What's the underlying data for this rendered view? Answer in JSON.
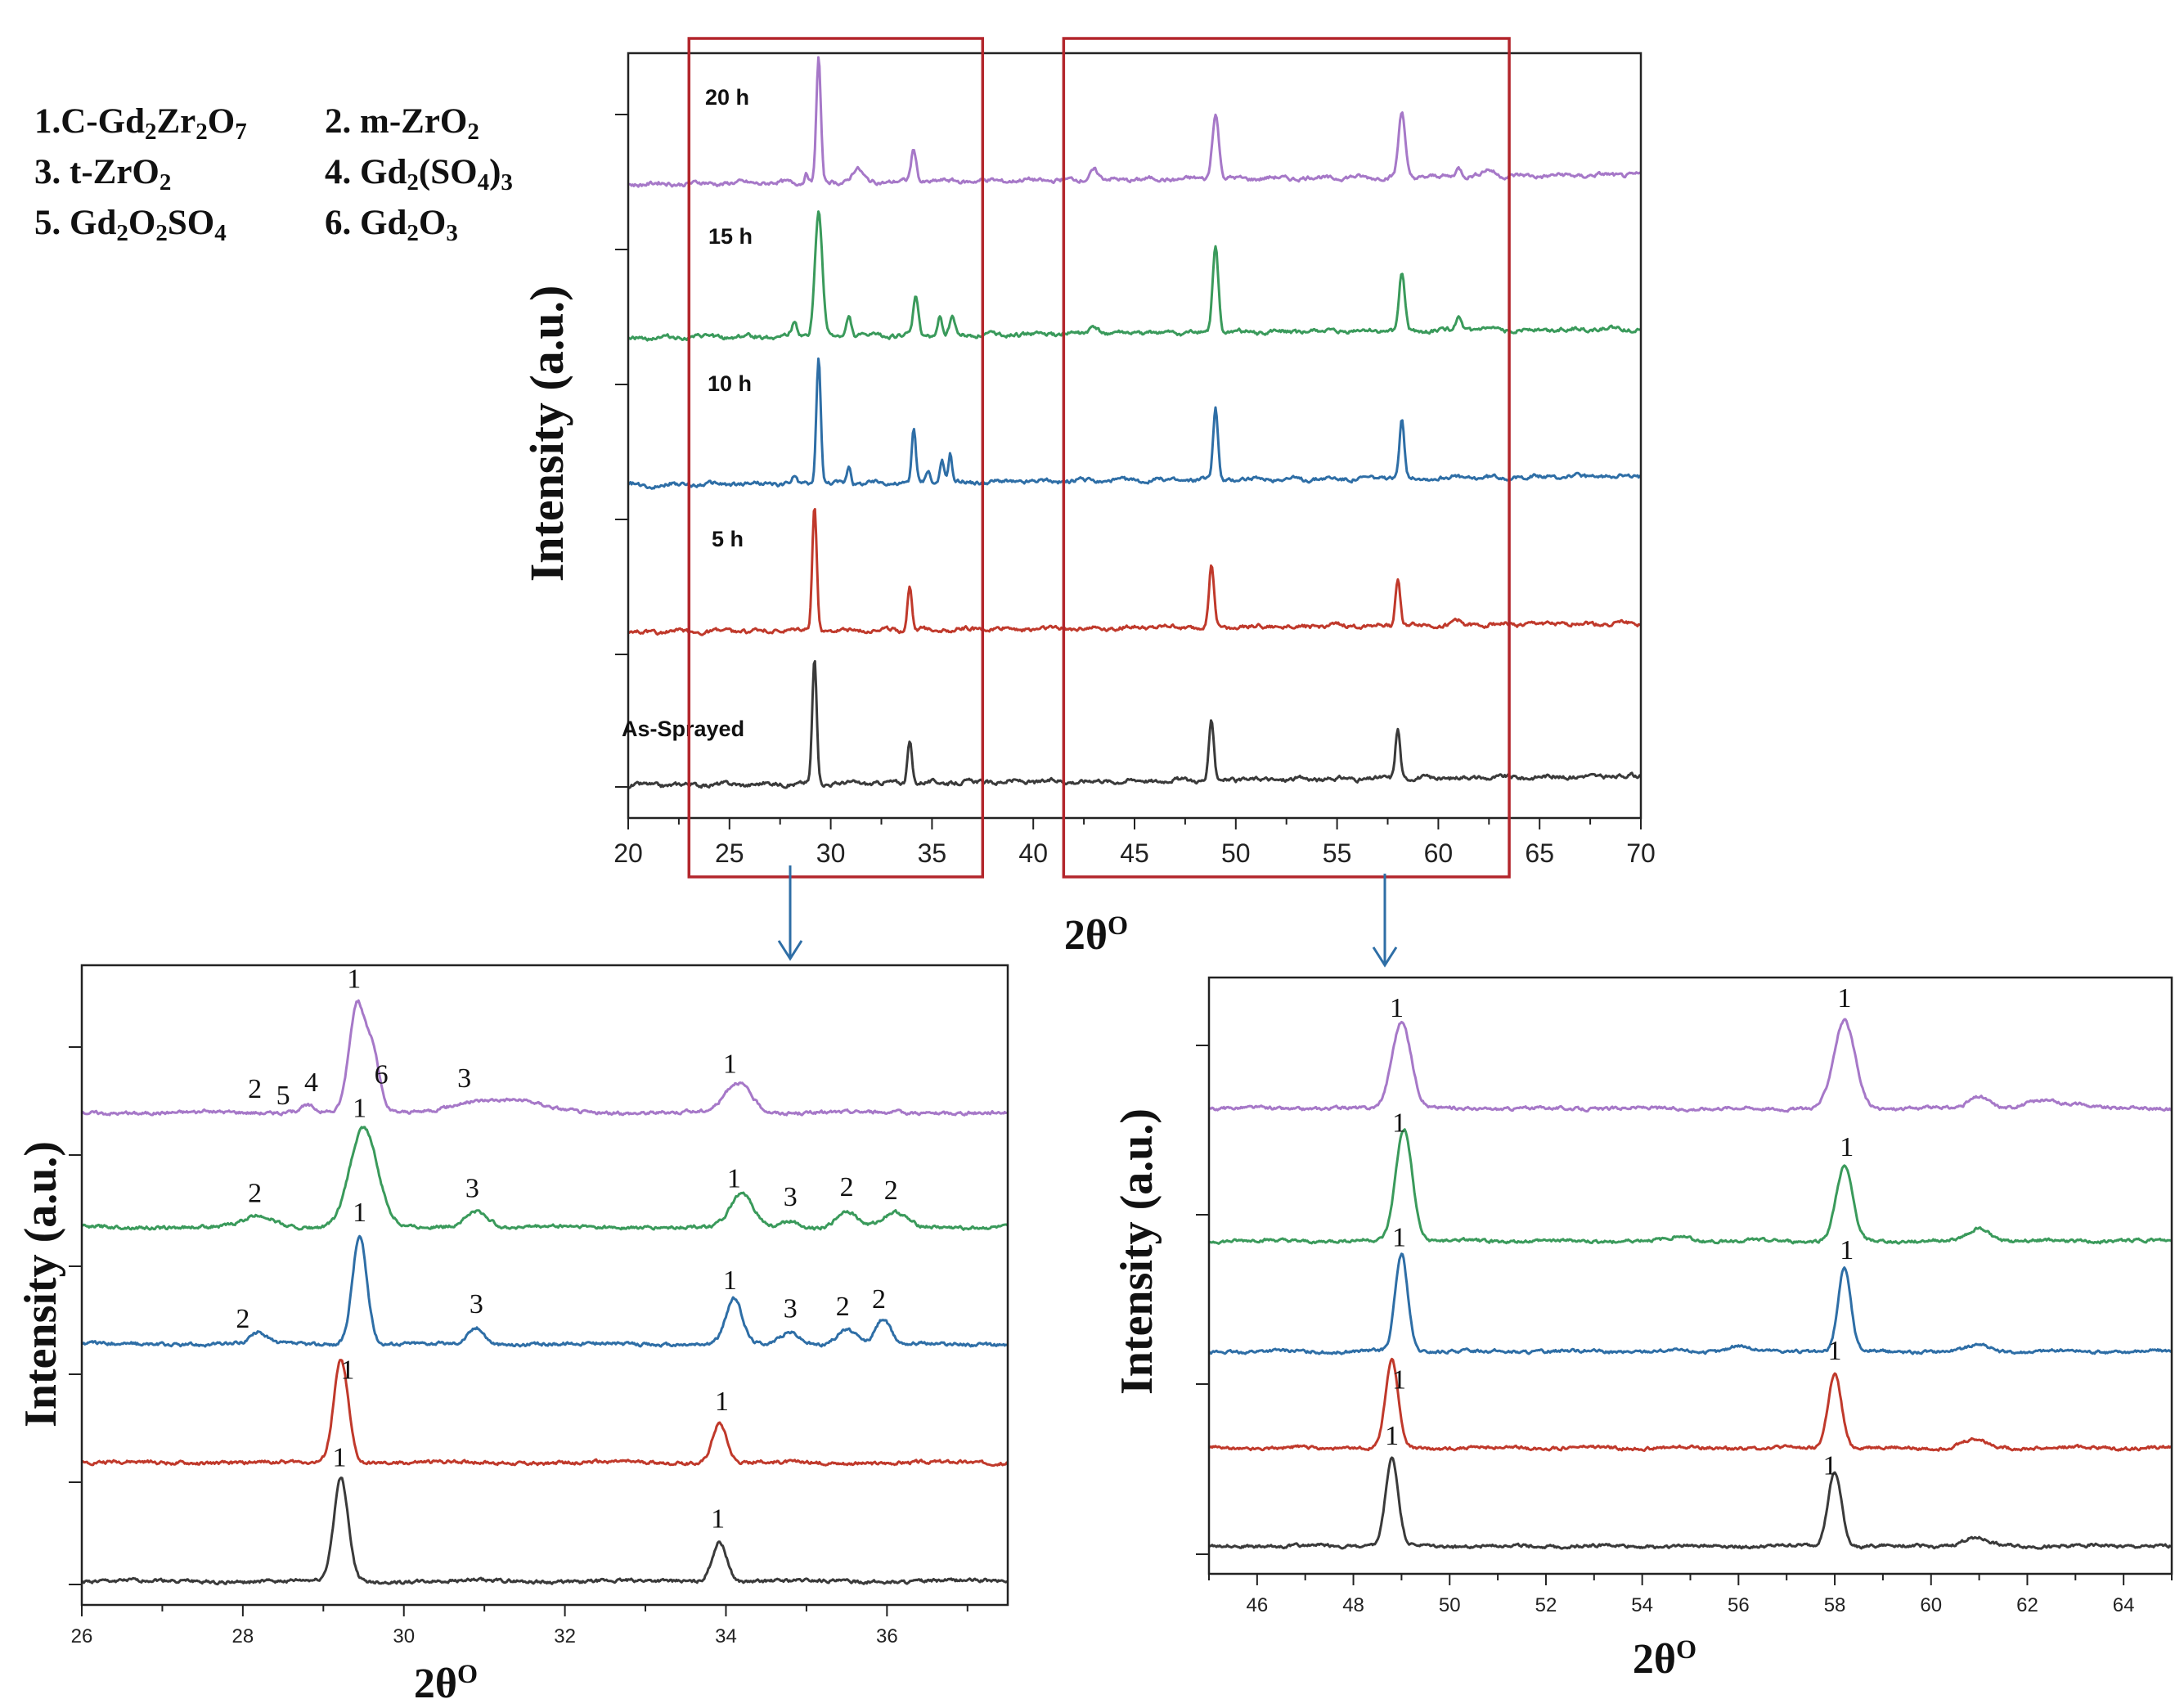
{
  "legend": {
    "items": [
      {
        "num": "1.",
        "formula": [
          [
            "C-Gd",
            ""
          ],
          [
            "2",
            "sub"
          ],
          [
            "Zr",
            ""
          ],
          [
            "2",
            "sub"
          ],
          [
            "O",
            ""
          ],
          [
            "7",
            "sub"
          ]
        ]
      },
      {
        "num": "2.",
        "formula": [
          [
            " m-ZrO",
            ""
          ],
          [
            "2",
            "sub"
          ]
        ]
      },
      {
        "num": "3.",
        "formula": [
          [
            " t-ZrO",
            ""
          ],
          [
            "2",
            "sub"
          ]
        ]
      },
      {
        "num": "4.",
        "formula": [
          [
            " Gd",
            ""
          ],
          [
            "2",
            "sub"
          ],
          [
            "(SO",
            ""
          ],
          [
            "4",
            "sub"
          ],
          [
            ")",
            ""
          ],
          [
            "3",
            "sub"
          ]
        ]
      },
      {
        "num": "5.",
        "formula": [
          [
            " Gd",
            ""
          ],
          [
            "2",
            "sub"
          ],
          [
            "O",
            ""
          ],
          [
            "2",
            "sub"
          ],
          [
            "SO",
            ""
          ],
          [
            "4",
            "sub"
          ]
        ]
      },
      {
        "num": "6.",
        "formula": [
          [
            " Gd",
            ""
          ],
          [
            "2",
            "sub"
          ],
          [
            "O",
            ""
          ],
          [
            "3",
            "sub"
          ]
        ]
      }
    ]
  },
  "colors": {
    "as_sprayed": "#3a3a3a",
    "h5": "#c0392b",
    "h10": "#2e6ea6",
    "h15": "#3a9a5b",
    "h20": "#a678c8",
    "box": "#b3262c",
    "arrow": "#2e6ea6"
  },
  "chart_data": [
    {
      "type": "line",
      "id": "main",
      "xlabel": "2θ",
      "xlabel_sup": "O",
      "ylabel": "Intensity (a.u.)",
      "xlim": [
        20,
        70
      ],
      "xticks": [
        20,
        25,
        30,
        35,
        40,
        45,
        50,
        55,
        60,
        65,
        70
      ],
      "highlight_boxes": [
        [
          23,
          37.5
        ],
        [
          41.5,
          63.5
        ]
      ],
      "series": [
        {
          "name": "As-Sprayed",
          "color_key": "as_sprayed",
          "offset": 0,
          "peaks": [
            [
              29.2,
              0.95,
              0.11
            ],
            [
              33.9,
              0.32,
              0.11
            ],
            [
              48.8,
              0.45,
              0.12
            ],
            [
              58.0,
              0.38,
              0.12
            ]
          ]
        },
        {
          "name": "5 h",
          "color_key": "h5",
          "offset": 1,
          "peaks": [
            [
              29.2,
              0.95,
              0.11
            ],
            [
              33.9,
              0.34,
              0.11
            ],
            [
              48.8,
              0.47,
              0.12
            ],
            [
              58.0,
              0.36,
              0.12
            ],
            [
              60.9,
              0.04,
              0.15
            ]
          ]
        },
        {
          "name": "10 h",
          "color_key": "h10",
          "offset": 2,
          "peaks": [
            [
              29.4,
              0.95,
              0.11
            ],
            [
              30.9,
              0.14,
              0.1
            ],
            [
              34.1,
              0.4,
              0.1
            ],
            [
              34.8,
              0.1,
              0.1
            ],
            [
              35.5,
              0.16,
              0.1
            ],
            [
              35.9,
              0.22,
              0.09
            ],
            [
              28.2,
              0.05,
              0.1
            ],
            [
              49.0,
              0.55,
              0.12
            ],
            [
              58.2,
              0.46,
              0.12
            ]
          ]
        },
        {
          "name": "15 h",
          "color_key": "h15",
          "offset": 3,
          "peaks": [
            [
              29.4,
              0.95,
              0.18
            ],
            [
              28.2,
              0.09,
              0.15
            ],
            [
              30.9,
              0.15,
              0.12
            ],
            [
              34.2,
              0.3,
              0.12
            ],
            [
              35.4,
              0.15,
              0.1
            ],
            [
              36.0,
              0.14,
              0.12
            ],
            [
              43.0,
              0.06,
              0.2
            ],
            [
              49.0,
              0.65,
              0.14
            ],
            [
              58.2,
              0.44,
              0.14
            ],
            [
              61.0,
              0.1,
              0.14
            ]
          ]
        },
        {
          "name": "20 h",
          "color_key": "h20",
          "offset": 4,
          "peaks": [
            [
              29.4,
              0.95,
              0.11
            ],
            [
              28.8,
              0.07,
              0.1
            ],
            [
              31.3,
              0.1,
              0.25
            ],
            [
              34.1,
              0.24,
              0.13
            ],
            [
              43.0,
              0.08,
              0.2
            ],
            [
              49.0,
              0.5,
              0.16
            ],
            [
              58.2,
              0.5,
              0.16
            ],
            [
              61.0,
              0.07,
              0.15
            ],
            [
              62.5,
              0.05,
              0.3
            ]
          ]
        }
      ]
    },
    {
      "type": "line",
      "id": "zoom-left",
      "xlabel": "2θ",
      "xlabel_sup": "O",
      "ylabel": "Intensity (a.u.)",
      "xlim": [
        26,
        37.5
      ],
      "xticks": [
        26,
        28,
        30,
        32,
        34,
        36
      ],
      "series": [
        {
          "name": "As-Sprayed",
          "color_key": "as_sprayed",
          "offset": 0,
          "peaks": [
            [
              29.22,
              0.95,
              0.09
            ],
            [
              33.92,
              0.37,
              0.09
            ]
          ]
        },
        {
          "name": "5 h",
          "color_key": "h5",
          "offset": 1,
          "peaks": [
            [
              29.22,
              0.95,
              0.09
            ],
            [
              33.92,
              0.37,
              0.09
            ]
          ]
        },
        {
          "name": "10 h",
          "color_key": "h10",
          "offset": 2,
          "peaks": [
            [
              28.2,
              0.1,
              0.1
            ],
            [
              29.45,
              1.0,
              0.09
            ],
            [
              30.9,
              0.15,
              0.1
            ],
            [
              34.1,
              0.42,
              0.1
            ],
            [
              34.8,
              0.11,
              0.11
            ],
            [
              35.5,
              0.14,
              0.12
            ],
            [
              35.95,
              0.23,
              0.09
            ]
          ]
        },
        {
          "name": "15 h",
          "color_key": "h15",
          "offset": 3,
          "peaks": [
            [
              28.2,
              0.1,
              0.18
            ],
            [
              29.5,
              0.92,
              0.17
            ],
            [
              30.9,
              0.15,
              0.14
            ],
            [
              34.2,
              0.3,
              0.14
            ],
            [
              34.8,
              0.06,
              0.1
            ],
            [
              35.5,
              0.15,
              0.12
            ],
            [
              36.1,
              0.13,
              0.14
            ]
          ]
        },
        {
          "name": "20 h",
          "color_key": "h20",
          "offset": 4,
          "peaks": [
            [
              28.8,
              0.07,
              0.1
            ],
            [
              29.42,
              1.0,
              0.1
            ],
            [
              29.62,
              0.5,
              0.08
            ],
            [
              30.8,
              0.08,
              0.3
            ],
            [
              31.4,
              0.1,
              0.35
            ],
            [
              34.15,
              0.28,
              0.16
            ]
          ]
        }
      ],
      "annotations": [
        {
          "series": 4,
          "x": 29.38,
          "text": "1",
          "dy": -12
        },
        {
          "series": 4,
          "x": 29.72,
          "text": "6",
          "dy": 14
        },
        {
          "series": 4,
          "x": 28.15,
          "text": "2",
          "dy": 0
        },
        {
          "series": 4,
          "x": 28.5,
          "text": "5",
          "dy": 8
        },
        {
          "series": 4,
          "x": 28.85,
          "text": "4",
          "dy": 0
        },
        {
          "series": 4,
          "x": 30.75,
          "text": "3",
          "dy": 0
        },
        {
          "series": 4,
          "x": 34.05,
          "text": "1",
          "dy": 0
        },
        {
          "series": 3,
          "x": 29.45,
          "text": "1",
          "dy": 0
        },
        {
          "series": 3,
          "x": 28.15,
          "text": "2",
          "dy": 0
        },
        {
          "series": 3,
          "x": 30.85,
          "text": "3",
          "dy": 0
        },
        {
          "series": 3,
          "x": 34.1,
          "text": "1",
          "dy": 0
        },
        {
          "series": 3,
          "x": 34.8,
          "text": "3",
          "dy": 0
        },
        {
          "series": 3,
          "x": 35.5,
          "text": "2",
          "dy": 0
        },
        {
          "series": 3,
          "x": 36.05,
          "text": "2",
          "dy": 0
        },
        {
          "series": 2,
          "x": 29.45,
          "text": "1",
          "dy": 0
        },
        {
          "series": 2,
          "x": 28.0,
          "text": "2",
          "dy": 0
        },
        {
          "series": 2,
          "x": 30.9,
          "text": "3",
          "dy": 0
        },
        {
          "series": 2,
          "x": 34.05,
          "text": "1",
          "dy": 0
        },
        {
          "series": 2,
          "x": 34.8,
          "text": "3",
          "dy": 0
        },
        {
          "series": 2,
          "x": 35.45,
          "text": "2",
          "dy": 0
        },
        {
          "series": 2,
          "x": 35.9,
          "text": "2",
          "dy": 0
        },
        {
          "series": 1,
          "x": 29.3,
          "text": "1",
          "dy": 0
        },
        {
          "series": 1,
          "x": 33.95,
          "text": "1",
          "dy": 0
        },
        {
          "series": 0,
          "x": 29.2,
          "text": "1",
          "dy": 0
        },
        {
          "series": 0,
          "x": 33.9,
          "text": "1",
          "dy": 0
        }
      ]
    },
    {
      "type": "line",
      "id": "zoom-right",
      "xlabel": "2θ",
      "xlabel_sup": "O",
      "ylabel": "Intensity (a.u.)",
      "xlim": [
        45,
        65
      ],
      "xticks": [
        46,
        48,
        50,
        52,
        54,
        56,
        58,
        60,
        62,
        64
      ],
      "series": [
        {
          "name": "As-Sprayed",
          "color_key": "as_sprayed",
          "offset": 0,
          "peaks": [
            [
              48.8,
              0.85,
              0.13
            ],
            [
              58.0,
              0.72,
              0.14
            ],
            [
              60.9,
              0.08,
              0.25
            ]
          ]
        },
        {
          "name": "5 h",
          "color_key": "h5",
          "offset": 1,
          "peaks": [
            [
              48.8,
              0.85,
              0.13
            ],
            [
              58.0,
              0.72,
              0.14
            ],
            [
              60.9,
              0.08,
              0.25
            ]
          ]
        },
        {
          "name": "10 h",
          "color_key": "h10",
          "offset": 2,
          "peaks": [
            [
              49.0,
              0.95,
              0.13
            ],
            [
              58.2,
              0.82,
              0.13
            ],
            [
              56.0,
              0.06,
              0.2
            ],
            [
              61.0,
              0.07,
              0.2
            ]
          ]
        },
        {
          "name": "15 h",
          "color_key": "h15",
          "offset": 3,
          "peaks": [
            [
              49.05,
              1.1,
              0.17
            ],
            [
              58.2,
              0.72,
              0.17
            ],
            [
              61.0,
              0.13,
              0.22
            ],
            [
              54.8,
              0.05,
              0.2
            ]
          ]
        },
        {
          "name": "20 h",
          "color_key": "h20",
          "offset": 4,
          "peaks": [
            [
              49.0,
              0.85,
              0.2
            ],
            [
              58.2,
              0.85,
              0.22
            ],
            [
              61.0,
              0.12,
              0.22
            ],
            [
              62.3,
              0.07,
              0.3
            ],
            [
              63.0,
              0.05,
              0.3
            ]
          ]
        }
      ],
      "annotations": [
        {
          "series": 4,
          "x": 48.9,
          "text": "1",
          "dy": 0
        },
        {
          "series": 4,
          "x": 58.2,
          "text": "1",
          "dy": 0
        },
        {
          "series": 3,
          "x": 48.95,
          "text": "1",
          "dy": 0
        },
        {
          "series": 3,
          "x": 58.25,
          "text": "1",
          "dy": 0
        },
        {
          "series": 2,
          "x": 48.95,
          "text": "1",
          "dy": 0
        },
        {
          "series": 2,
          "x": 58.25,
          "text": "1",
          "dy": 0
        },
        {
          "series": 1,
          "x": 48.95,
          "text": "1",
          "dy": 0
        },
        {
          "series": 1,
          "x": 58.0,
          "text": "1",
          "dy": 0
        },
        {
          "series": 0,
          "x": 48.8,
          "text": "1",
          "dy": 0
        },
        {
          "series": 0,
          "x": 57.9,
          "text": "1",
          "dy": 0
        }
      ]
    }
  ]
}
